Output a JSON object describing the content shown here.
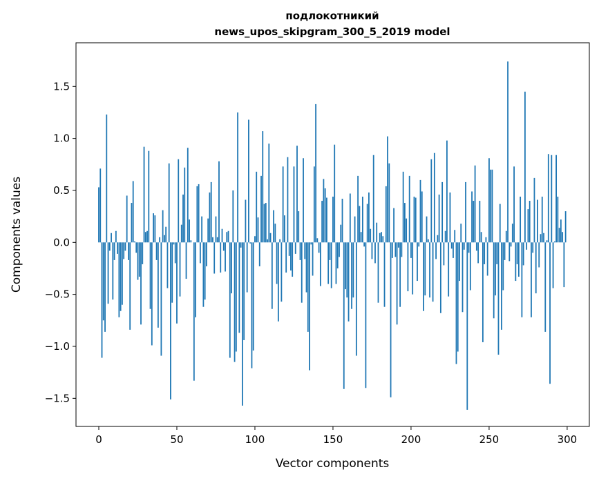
{
  "chart_data": {
    "type": "bar",
    "title": "подлокотникий",
    "subtitle": "news_upos_skipgram_300_5_2019 model",
    "xlabel": "Vector components",
    "ylabel": "Components values",
    "xlim": [
      -14.6,
      314.2
    ],
    "ylim": [
      -1.77,
      1.92
    ],
    "xticks": [
      0,
      50,
      100,
      150,
      200,
      250,
      300
    ],
    "yticks": [
      -1.5,
      -1.0,
      -0.5,
      0.0,
      0.5,
      1.0,
      1.5
    ],
    "ytick_labels": [
      "−1.5",
      "−1.0",
      "−0.5",
      "0.0",
      "0.5",
      "1.0",
      "1.5"
    ],
    "grid": false,
    "color": "#1f77b4",
    "values": [
      0.53,
      0.71,
      -1.11,
      -0.75,
      -0.86,
      1.23,
      -0.59,
      -0.08,
      0.09,
      -0.55,
      -0.17,
      0.11,
      -0.11,
      -0.72,
      -0.66,
      -0.6,
      -0.16,
      -0.08,
      0.45,
      -0.17,
      -0.84,
      0.38,
      0.59,
      0.01,
      -0.1,
      -0.36,
      -0.33,
      -0.79,
      -0.21,
      0.92,
      0.1,
      0.11,
      0.88,
      -0.64,
      -0.99,
      0.28,
      0.26,
      -0.17,
      -0.82,
      0.05,
      -1.09,
      0.31,
      0.07,
      0.15,
      -0.44,
      0.76,
      -1.51,
      -0.58,
      -0.02,
      -0.2,
      -0.78,
      0.8,
      -0.52,
      0.17,
      0.46,
      0.72,
      -0.35,
      0.91,
      0.22,
      0.02,
      0.0,
      -1.33,
      -0.72,
      0.54,
      0.56,
      -0.2,
      0.25,
      -0.62,
      -0.55,
      -0.23,
      0.23,
      0.48,
      0.58,
      0.05,
      -0.3,
      0.25,
      0.05,
      0.78,
      -0.29,
      0.13,
      -0.08,
      -0.28,
      0.1,
      0.11,
      -1.11,
      -0.49,
      0.5,
      -1.15,
      -1.05,
      1.25,
      -0.87,
      -0.05,
      -1.57,
      -0.94,
      0.41,
      -0.48,
      1.18,
      -0.01,
      -1.21,
      -1.04,
      0.06,
      0.68,
      0.24,
      -0.23,
      0.64,
      1.07,
      0.37,
      0.38,
      0.03,
      0.95,
      0.09,
      -0.64,
      0.31,
      0.18,
      -0.4,
      -0.76,
      0.03,
      -0.57,
      0.73,
      0.26,
      -0.29,
      0.82,
      -0.13,
      -0.27,
      -0.33,
      0.73,
      -0.11,
      0.93,
      0.3,
      -0.17,
      -0.58,
      0.81,
      -0.16,
      -0.48,
      -0.86,
      -1.23,
      -0.02,
      -0.32,
      0.73,
      1.33,
      0.04,
      -0.1,
      -0.42,
      0.4,
      0.61,
      0.52,
      0.43,
      -0.4,
      -0.17,
      -0.44,
      0.44,
      0.94,
      -0.4,
      -0.25,
      -0.14,
      0.17,
      0.42,
      -1.41,
      -0.45,
      -0.53,
      -0.76,
      0.47,
      -0.64,
      -0.53,
      0.25,
      -1.09,
      0.64,
      0.35,
      0.1,
      0.44,
      -0.04,
      -1.4,
      0.37,
      0.48,
      0.13,
      -0.16,
      0.84,
      -0.2,
      0.19,
      -0.58,
      0.09,
      0.1,
      0.06,
      -0.62,
      0.54,
      1.02,
      0.76,
      -1.49,
      -0.15,
      0.33,
      -0.14,
      -0.79,
      -0.05,
      -0.62,
      -0.14,
      0.68,
      0.38,
      0.23,
      -0.47,
      0.64,
      -0.15,
      -0.5,
      0.44,
      0.43,
      -0.37,
      -0.04,
      0.6,
      0.49,
      -0.66,
      -0.51,
      0.25,
      0.03,
      -0.53,
      0.8,
      -0.57,
      0.86,
      -0.16,
      0.07,
      0.46,
      -0.68,
      0.58,
      -0.22,
      0.11,
      0.98,
      -0.52,
      0.48,
      -0.06,
      -0.15,
      0.12,
      -1.17,
      -1.05,
      -0.37,
      0.18,
      -0.67,
      -0.07,
      0.58,
      -1.61,
      -0.1,
      -0.46,
      0.49,
      0.4,
      0.74,
      -0.08,
      -0.2,
      0.4,
      0.1,
      -0.96,
      -0.21,
      0.05,
      -0.32,
      0.81,
      0.7,
      0.7,
      -0.73,
      -0.51,
      -0.21,
      -1.08,
      0.37,
      -0.84,
      -0.46,
      -0.17,
      0.11,
      1.74,
      -0.18,
      -0.04,
      0.18,
      0.73,
      -0.37,
      -0.21,
      -0.33,
      0.44,
      -0.72,
      -0.22,
      1.45,
      -0.07,
      0.32,
      0.4,
      -0.72,
      -0.1,
      0.62,
      -0.49,
      0.41,
      -0.24,
      0.08,
      0.44,
      0.09,
      -0.86,
      0.02,
      0.85,
      -1.36,
      0.84,
      -0.44,
      0.01,
      0.84,
      0.44,
      0.14,
      0.22,
      0.1,
      -0.43,
      0.3
    ]
  }
}
